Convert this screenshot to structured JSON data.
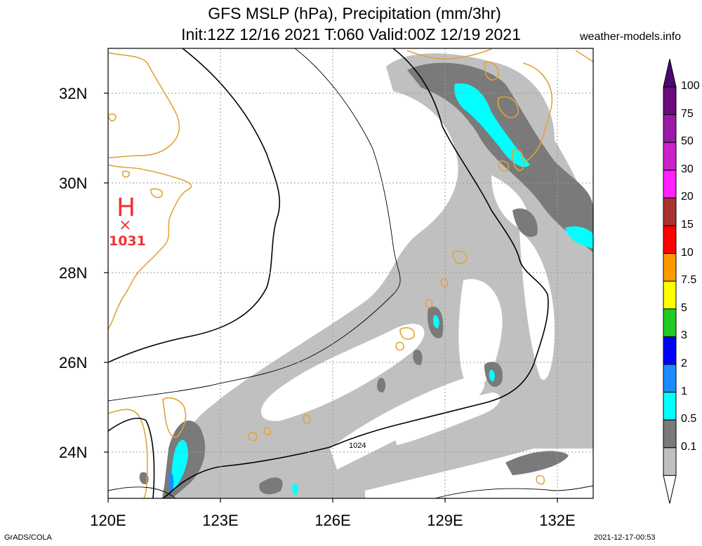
{
  "title": {
    "line1": "GFS MSLP (hPa), Precipitation (mm/3hr)",
    "line2": "Init:12Z 12/16 2021 T:060 Valid:00Z 12/19 2021"
  },
  "source": "weather-models.info",
  "map": {
    "lat_labels": [
      "32N",
      "30N",
      "28N",
      "26N",
      "24N"
    ],
    "lon_labels": [
      "120E",
      "123E",
      "126E",
      "129E",
      "132E"
    ],
    "lat_range": [
      23,
      33
    ],
    "lon_range": [
      120,
      133
    ],
    "high_pressure": {
      "symbol": "H",
      "mark": "×",
      "value": "1031"
    },
    "isobar_label": "1024",
    "colors": {
      "coast": "#e0a43a",
      "isobar": "#000000",
      "grid": "#999999"
    }
  },
  "legend": {
    "labels": [
      "100",
      "75",
      "50",
      "30",
      "20",
      "15",
      "10",
      "7.5",
      "5",
      "3",
      "2",
      "1",
      "0.5",
      "0.1"
    ],
    "colors": [
      "#6b0a7e",
      "#9a1aa8",
      "#cc22cc",
      "#ff22ff",
      "#a83232",
      "#ff0000",
      "#ff9900",
      "#ffff00",
      "#22cc22",
      "#0000ff",
      "#1a8cff",
      "#00ffff",
      "#7a7a7a",
      "#c0c0c0"
    ]
  },
  "footer": {
    "credit": "GrADS/COLA",
    "timestamp": "2021-12-17-00:53"
  }
}
